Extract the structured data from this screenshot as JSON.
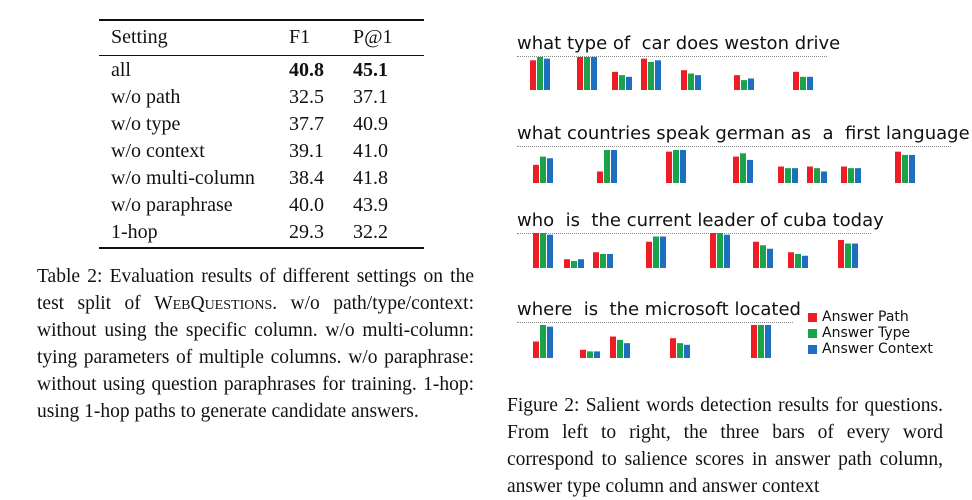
{
  "table": {
    "headers": [
      "Setting",
      "F1",
      "P@1"
    ],
    "rows": [
      [
        "all",
        "40.8",
        "45.1"
      ],
      [
        "w/o path",
        "32.5",
        "37.1"
      ],
      [
        "w/o type",
        "37.7",
        "40.9"
      ],
      [
        "w/o context",
        "39.1",
        "41.0"
      ],
      [
        "w/o multi-column",
        "38.4",
        "41.8"
      ],
      [
        "w/o paraphrase",
        "40.0",
        "43.9"
      ],
      [
        "1-hop",
        "29.3",
        "32.2"
      ]
    ]
  },
  "table_caption": {
    "part1": "Table 2:  Evaluation results of different settings on the test split of ",
    "dataset": "WebQuestions",
    "part2": ".  w/o path/type/context: without using the specific column. w/o multi-column: tying parameters of multiple columns.  w/o paraphrase: without using question paraphrases for training. 1-hop: using 1-hop paths to generate candidate answers."
  },
  "figure": {
    "questions": [
      "what type of  car does weston drive",
      "what countries speak german as  a  first language",
      "who  is  the current leader of cuba today",
      "where  is  the microsoft located"
    ],
    "legend": [
      "Answer Path",
      "Answer Type",
      "Answer Context"
    ],
    "colors": {
      "answer_path": "#ee1c25",
      "answer_type": "#1aa34a",
      "answer_context": "#1f6fc1"
    }
  },
  "chart_data": {
    "type": "bar",
    "series_names": [
      "Answer Path",
      "Answer Type",
      "Answer Context"
    ],
    "groups": [
      {
        "question": "what type of  car does weston drive",
        "words": [
          [
            0.9,
            1.0,
            0.95
          ],
          [
            1.0,
            1.0,
            1.0
          ],
          [
            0.55,
            0.45,
            0.4
          ],
          [
            0.95,
            0.85,
            0.9
          ],
          [
            0.6,
            0.5,
            0.45
          ],
          [
            0.45,
            0.3,
            0.35
          ],
          [
            0.55,
            0.4,
            0.4
          ]
        ]
      },
      {
        "question": "what countries speak german as  a  first language",
        "words": [
          [
            0.55,
            0.8,
            0.75
          ],
          [
            0.35,
            1.0,
            1.0
          ],
          [
            0.95,
            1.0,
            1.0
          ],
          [
            0.8,
            0.9,
            0.7
          ],
          [
            0.5,
            0.45,
            0.45
          ],
          [
            0.5,
            0.45,
            0.35
          ],
          [
            0.5,
            0.45,
            0.45
          ],
          [
            0.95,
            0.85,
            0.85
          ]
        ]
      },
      {
        "question": "who  is  the current leader of cuba today",
        "words": [
          [
            1.0,
            1.0,
            0.95
          ],
          [
            0.25,
            0.2,
            0.25
          ],
          [
            0.45,
            0.4,
            0.4
          ],
          [
            0.75,
            0.9,
            0.9
          ],
          [
            1.0,
            1.0,
            0.95
          ],
          [
            0.75,
            0.65,
            0.55
          ],
          [
            0.45,
            0.4,
            0.35
          ],
          [
            0.8,
            0.7,
            0.7
          ]
        ]
      },
      {
        "question": "where  is  the microsoft located",
        "words": [
          [
            0.5,
            1.0,
            0.95
          ],
          [
            0.25,
            0.2,
            0.2
          ],
          [
            0.65,
            0.55,
            0.45
          ],
          [
            0.6,
            0.45,
            0.4
          ],
          [
            1.0,
            1.0,
            1.0
          ]
        ]
      }
    ]
  },
  "figure_caption": "Figure 2: Salient words detection results for questions.  From left to right, the three bars of every word correspond to salience scores in answer path column, answer type column and answer context"
}
